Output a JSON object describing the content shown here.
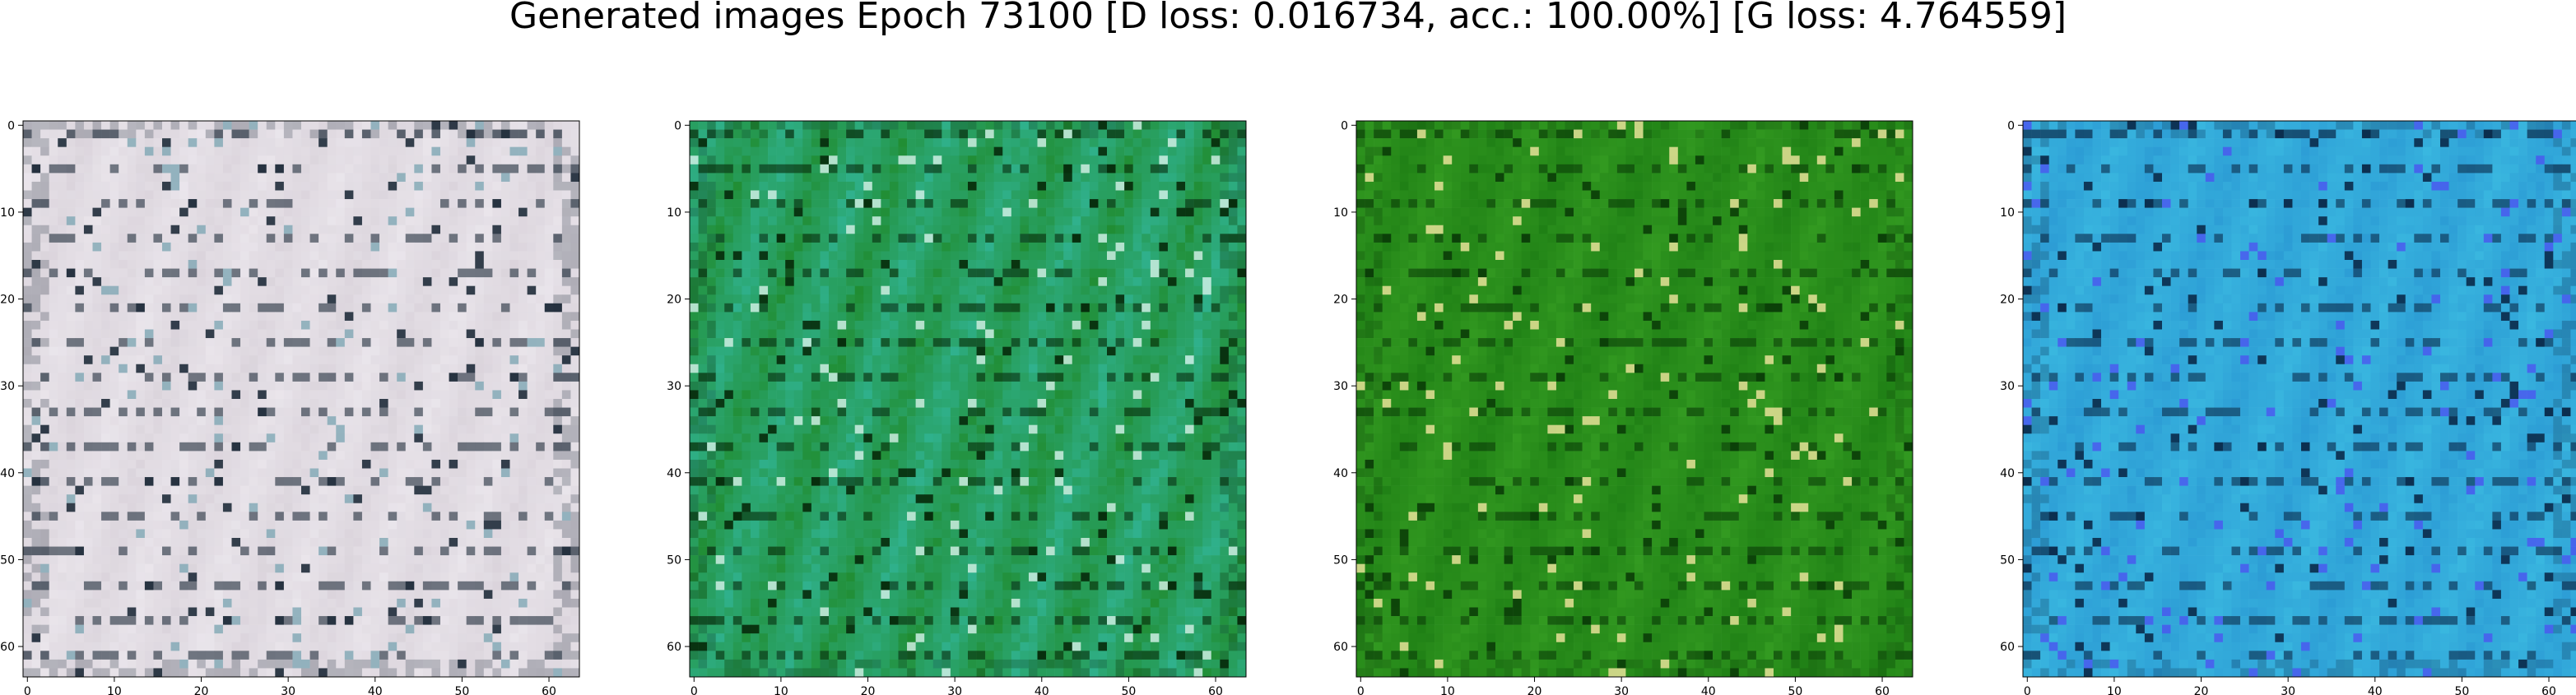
{
  "figure": {
    "title": "Generated images Epoch 73100 [D loss: 0.016734, acc.: 100.00%] [G loss: 4.764559]"
  },
  "panels": [
    {
      "id": "sample-1",
      "palette": {
        "base": "#d9d2da",
        "light": "#f3f0f5",
        "dark": "#1f2c3a",
        "accent": "#7fa7b4"
      }
    },
    {
      "id": "sample-2",
      "palette": {
        "base": "#1f8a2b",
        "light": "#39c7c4",
        "dark": "#062a0a",
        "accent": "#d7f3ea"
      }
    },
    {
      "id": "sample-3",
      "palette": {
        "base": "#1d7d14",
        "light": "#3faa28",
        "dark": "#0a3d07",
        "accent": "#f3e7a0"
      }
    },
    {
      "id": "sample-4",
      "palette": {
        "base": "#2b9ad4",
        "light": "#41c7e6",
        "dark": "#0a2a4a",
        "accent": "#4b55f0"
      }
    }
  ],
  "axes": {
    "xticks": [
      "0",
      "10",
      "20",
      "30",
      "40",
      "50",
      "60"
    ],
    "yticks": [
      "0",
      "10",
      "20",
      "30",
      "40",
      "50",
      "60"
    ],
    "xlim": [
      -0.5,
      63.5
    ],
    "ylim": [
      63.5,
      -0.5
    ]
  }
}
